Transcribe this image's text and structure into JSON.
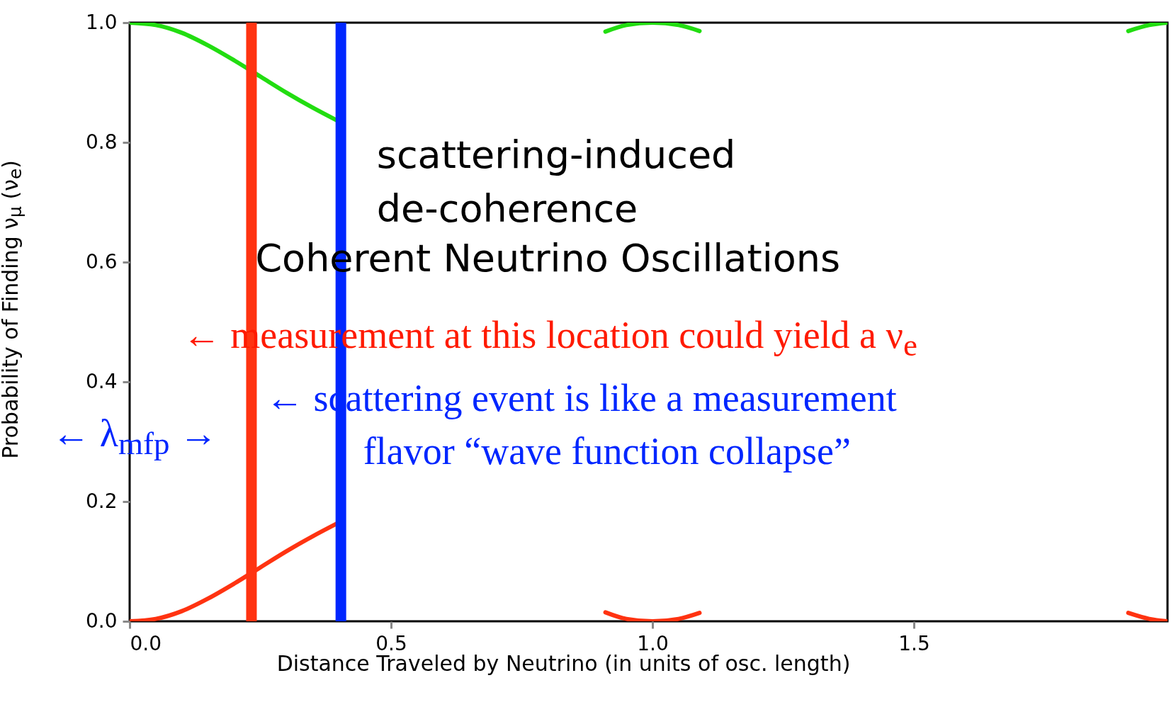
{
  "chart_data": {
    "type": "line",
    "xlabel": "Distance Traveled by Neutrino (in units of osc. length)",
    "ylabel": "Probability of Finding ν$_{μ}$ (ν$_{e}$)",
    "x": [
      0,
      0.05,
      0.1,
      0.15,
      0.2,
      0.25,
      0.3,
      0.35,
      0.4,
      0.6,
      0.91,
      0.95,
      1.0,
      1.05,
      1.09,
      1.5,
      1.91,
      1.95,
      1.985
    ],
    "series": [
      {
        "color": "#22dd11",
        "values": [
          1.0,
          0.996,
          0.983,
          0.962,
          0.937,
          0.91,
          0.883,
          0.858,
          0.835,
          null,
          0.985,
          0.996,
          1.0,
          0.996,
          0.986,
          null,
          0.986,
          0.996,
          1.0
        ]
      },
      {
        "color": "#ff3311",
        "values": [
          0.0,
          0.004,
          0.017,
          0.038,
          0.063,
          0.09,
          0.117,
          0.142,
          0.165,
          null,
          0.015,
          0.004,
          0.0,
          0.004,
          0.014,
          null,
          0.014,
          0.004,
          0.0
        ]
      }
    ],
    "xlim": [
      0,
      1.985
    ],
    "ylim": [
      0,
      1
    ],
    "xticks": [
      {
        "value": 0,
        "label": "0.0"
      },
      {
        "value": 0.5,
        "label": "0.5"
      },
      {
        "value": 1,
        "label": "1.0"
      },
      {
        "value": 1.5,
        "label": "1.5"
      }
    ],
    "yticks": [
      {
        "value": 0,
        "label": "0.0"
      },
      {
        "value": 0.2,
        "label": "0.2"
      },
      {
        "value": 0.4,
        "label": "0.4"
      },
      {
        "value": 0.6,
        "label": "0.6"
      },
      {
        "value": 0.8,
        "label": "0.8"
      },
      {
        "value": 1,
        "label": "1.0"
      }
    ],
    "ref_lines": [
      {
        "axis": "x",
        "value": 0.233,
        "color": "#ff3311"
      },
      {
        "axis": "x",
        "value": 0.404,
        "color": "#0026ff"
      }
    ],
    "annotations": [
      "scattering-induced",
      "de-coherence",
      "Coherent Neutrino Oscillations",
      "← measurement at this location could yield a ν$_{e}$",
      "← scattering event is like a measurement",
      "flavor “wave function collapse”",
      "← λ$_{mfp}$ →"
    ]
  }
}
